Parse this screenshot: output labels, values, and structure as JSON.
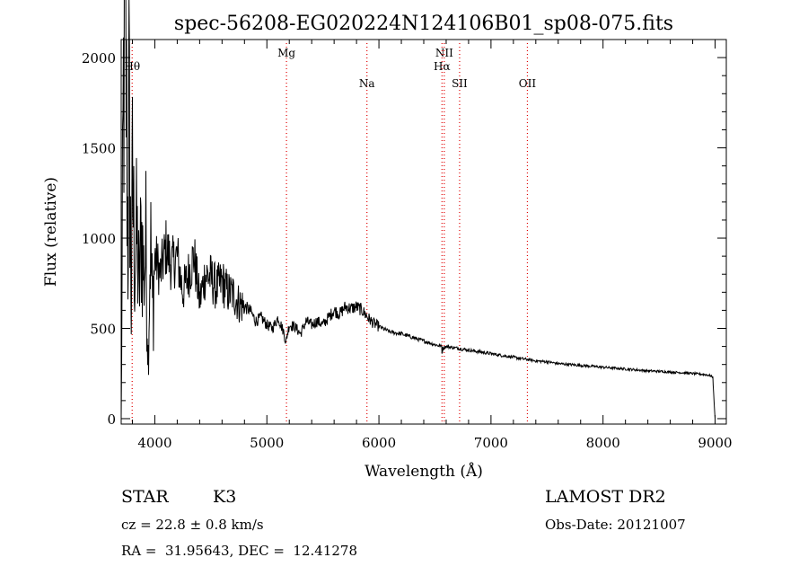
{
  "chart_data": {
    "type": "line",
    "title": "spec-56208-EG020224N124106B01_sp08-075.fits",
    "xlabel": "Wavelength (Å)",
    "ylabel": "Flux (relative)",
    "xlim": [
      3700,
      9100
    ],
    "ylim": [
      -30,
      2100
    ],
    "xticks": [
      4000,
      5000,
      6000,
      7000,
      8000,
      9000
    ],
    "yticks": [
      0,
      500,
      1000,
      1500,
      2000
    ],
    "series": [
      {
        "name": "spectrum",
        "x": [
          3700,
          3720,
          3740,
          3760,
          3770,
          3780,
          3790,
          3800,
          3820,
          3840,
          3860,
          3880,
          3900,
          3920,
          3940,
          3960,
          3980,
          4000,
          4050,
          4100,
          4150,
          4200,
          4250,
          4300,
          4350,
          4400,
          4450,
          4500,
          4550,
          4600,
          4650,
          4700,
          4750,
          4800,
          4850,
          4900,
          4950,
          5000,
          5050,
          5100,
          5150,
          5170,
          5180,
          5200,
          5250,
          5300,
          5350,
          5400,
          5450,
          5500,
          5550,
          5600,
          5650,
          5700,
          5750,
          5800,
          5850,
          5890,
          5900,
          5950,
          6000,
          6100,
          6200,
          6300,
          6400,
          6500,
          6560,
          6563,
          6570,
          6600,
          6700,
          6800,
          6900,
          7000,
          7100,
          7200,
          7300,
          7400,
          7500,
          7600,
          7700,
          7800,
          7900,
          8000,
          8100,
          8200,
          8300,
          8400,
          8500,
          8600,
          8700,
          8800,
          8900,
          8950,
          8980,
          8990,
          9000
        ],
        "y": [
          0,
          1800,
          2100,
          900,
          1700,
          1200,
          600,
          1300,
          900,
          1000,
          700,
          1050,
          800,
          950,
          350,
          1000,
          600,
          900,
          800,
          950,
          850,
          900,
          700,
          800,
          900,
          650,
          800,
          780,
          720,
          760,
          700,
          690,
          640,
          620,
          600,
          540,
          560,
          520,
          500,
          560,
          480,
          420,
          460,
          520,
          510,
          470,
          540,
          520,
          540,
          520,
          560,
          600,
          580,
          620,
          610,
          620,
          600,
          570,
          560,
          530,
          510,
          480,
          470,
          450,
          430,
          410,
          400,
          360,
          390,
          400,
          390,
          380,
          370,
          360,
          350,
          340,
          330,
          320,
          315,
          305,
          300,
          295,
          290,
          285,
          280,
          275,
          270,
          265,
          262,
          258,
          255,
          250,
          245,
          240,
          230,
          100,
          0
        ]
      }
    ],
    "lines": [
      {
        "label": "Hθ",
        "x": 3798
      },
      {
        "label": "Mg",
        "x": 5175
      },
      {
        "label": "Na",
        "x": 5893
      },
      {
        "label": "NII",
        "x": 6583
      },
      {
        "label": "Hα",
        "x": 6563
      },
      {
        "label": "SII",
        "x": 6720
      },
      {
        "label": "OII",
        "x": 7325
      }
    ]
  },
  "info": {
    "object_class": "STAR",
    "subclass": "K3",
    "survey": "LAMOST DR2",
    "redshift": "cz = 22.8 ± 0.8 km/s",
    "obs_date": "Obs-Date: 20121007",
    "coords": "RA =  31.95643, DEC =  12.41278"
  }
}
